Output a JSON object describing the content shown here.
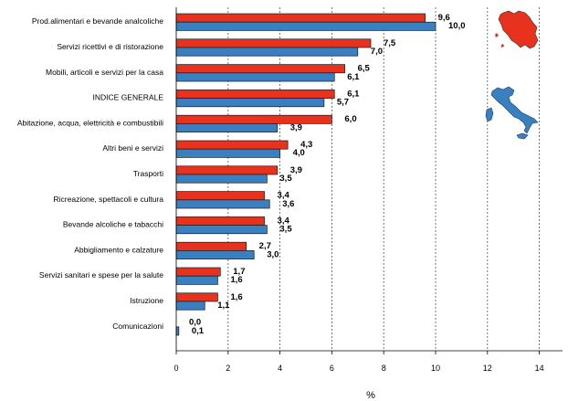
{
  "chart_data": {
    "type": "bar",
    "orientation": "horizontal",
    "xlabel": "%",
    "xlim": [
      0,
      15
    ],
    "xticks": [
      0,
      2,
      4,
      6,
      8,
      10,
      12,
      14
    ],
    "grid": "vertical-dashed",
    "categories": [
      "Prod.alimentari e bevande analcoliche",
      "Servizi ricettivi e di ristorazione",
      "Mobili, articoli e servizi per la casa",
      "INDICE GENERALE",
      "Abitazione, acqua, elettricità e combustibili",
      "Altri beni e servizi",
      "Trasporti",
      "Ricreazione, spettacoli e cultura",
      "Bevande alcoliche e tabacchi",
      "Abbigliamento e calzature",
      "Servizi sanitari e spese per la salute",
      "Istruzione",
      "Comunicazioni"
    ],
    "series": [
      {
        "name": "Toscana",
        "color": "#e8321e",
        "values": [
          9.6,
          7.5,
          6.5,
          6.1,
          6.0,
          4.3,
          3.9,
          3.4,
          3.4,
          2.7,
          1.7,
          1.6,
          0.0
        ],
        "labels": [
          "9,6",
          "7,5",
          "6,5",
          "6,1",
          "6,0",
          "4,3",
          "3,9",
          "3,4",
          "3,4",
          "2,7",
          "1,7",
          "1,6",
          "0,0"
        ]
      },
      {
        "name": "Italia",
        "color": "#3a7fbf",
        "values": [
          10.0,
          7.0,
          6.1,
          5.7,
          3.9,
          4.0,
          3.5,
          3.6,
          3.5,
          3.0,
          1.6,
          1.1,
          0.1
        ],
        "labels": [
          "10,0",
          "7,0",
          "6,1",
          "5,7",
          "3,9",
          "4,0",
          "3,5",
          "3,6",
          "3,5",
          "3,0",
          "1,6",
          "1,1",
          "0,1"
        ]
      }
    ],
    "legend_icons": [
      {
        "series": "Toscana",
        "icon": "tuscany-map-icon",
        "color": "#e8321e"
      },
      {
        "series": "Italia",
        "icon": "italy-map-icon",
        "color": "#3a7fbf"
      }
    ]
  }
}
